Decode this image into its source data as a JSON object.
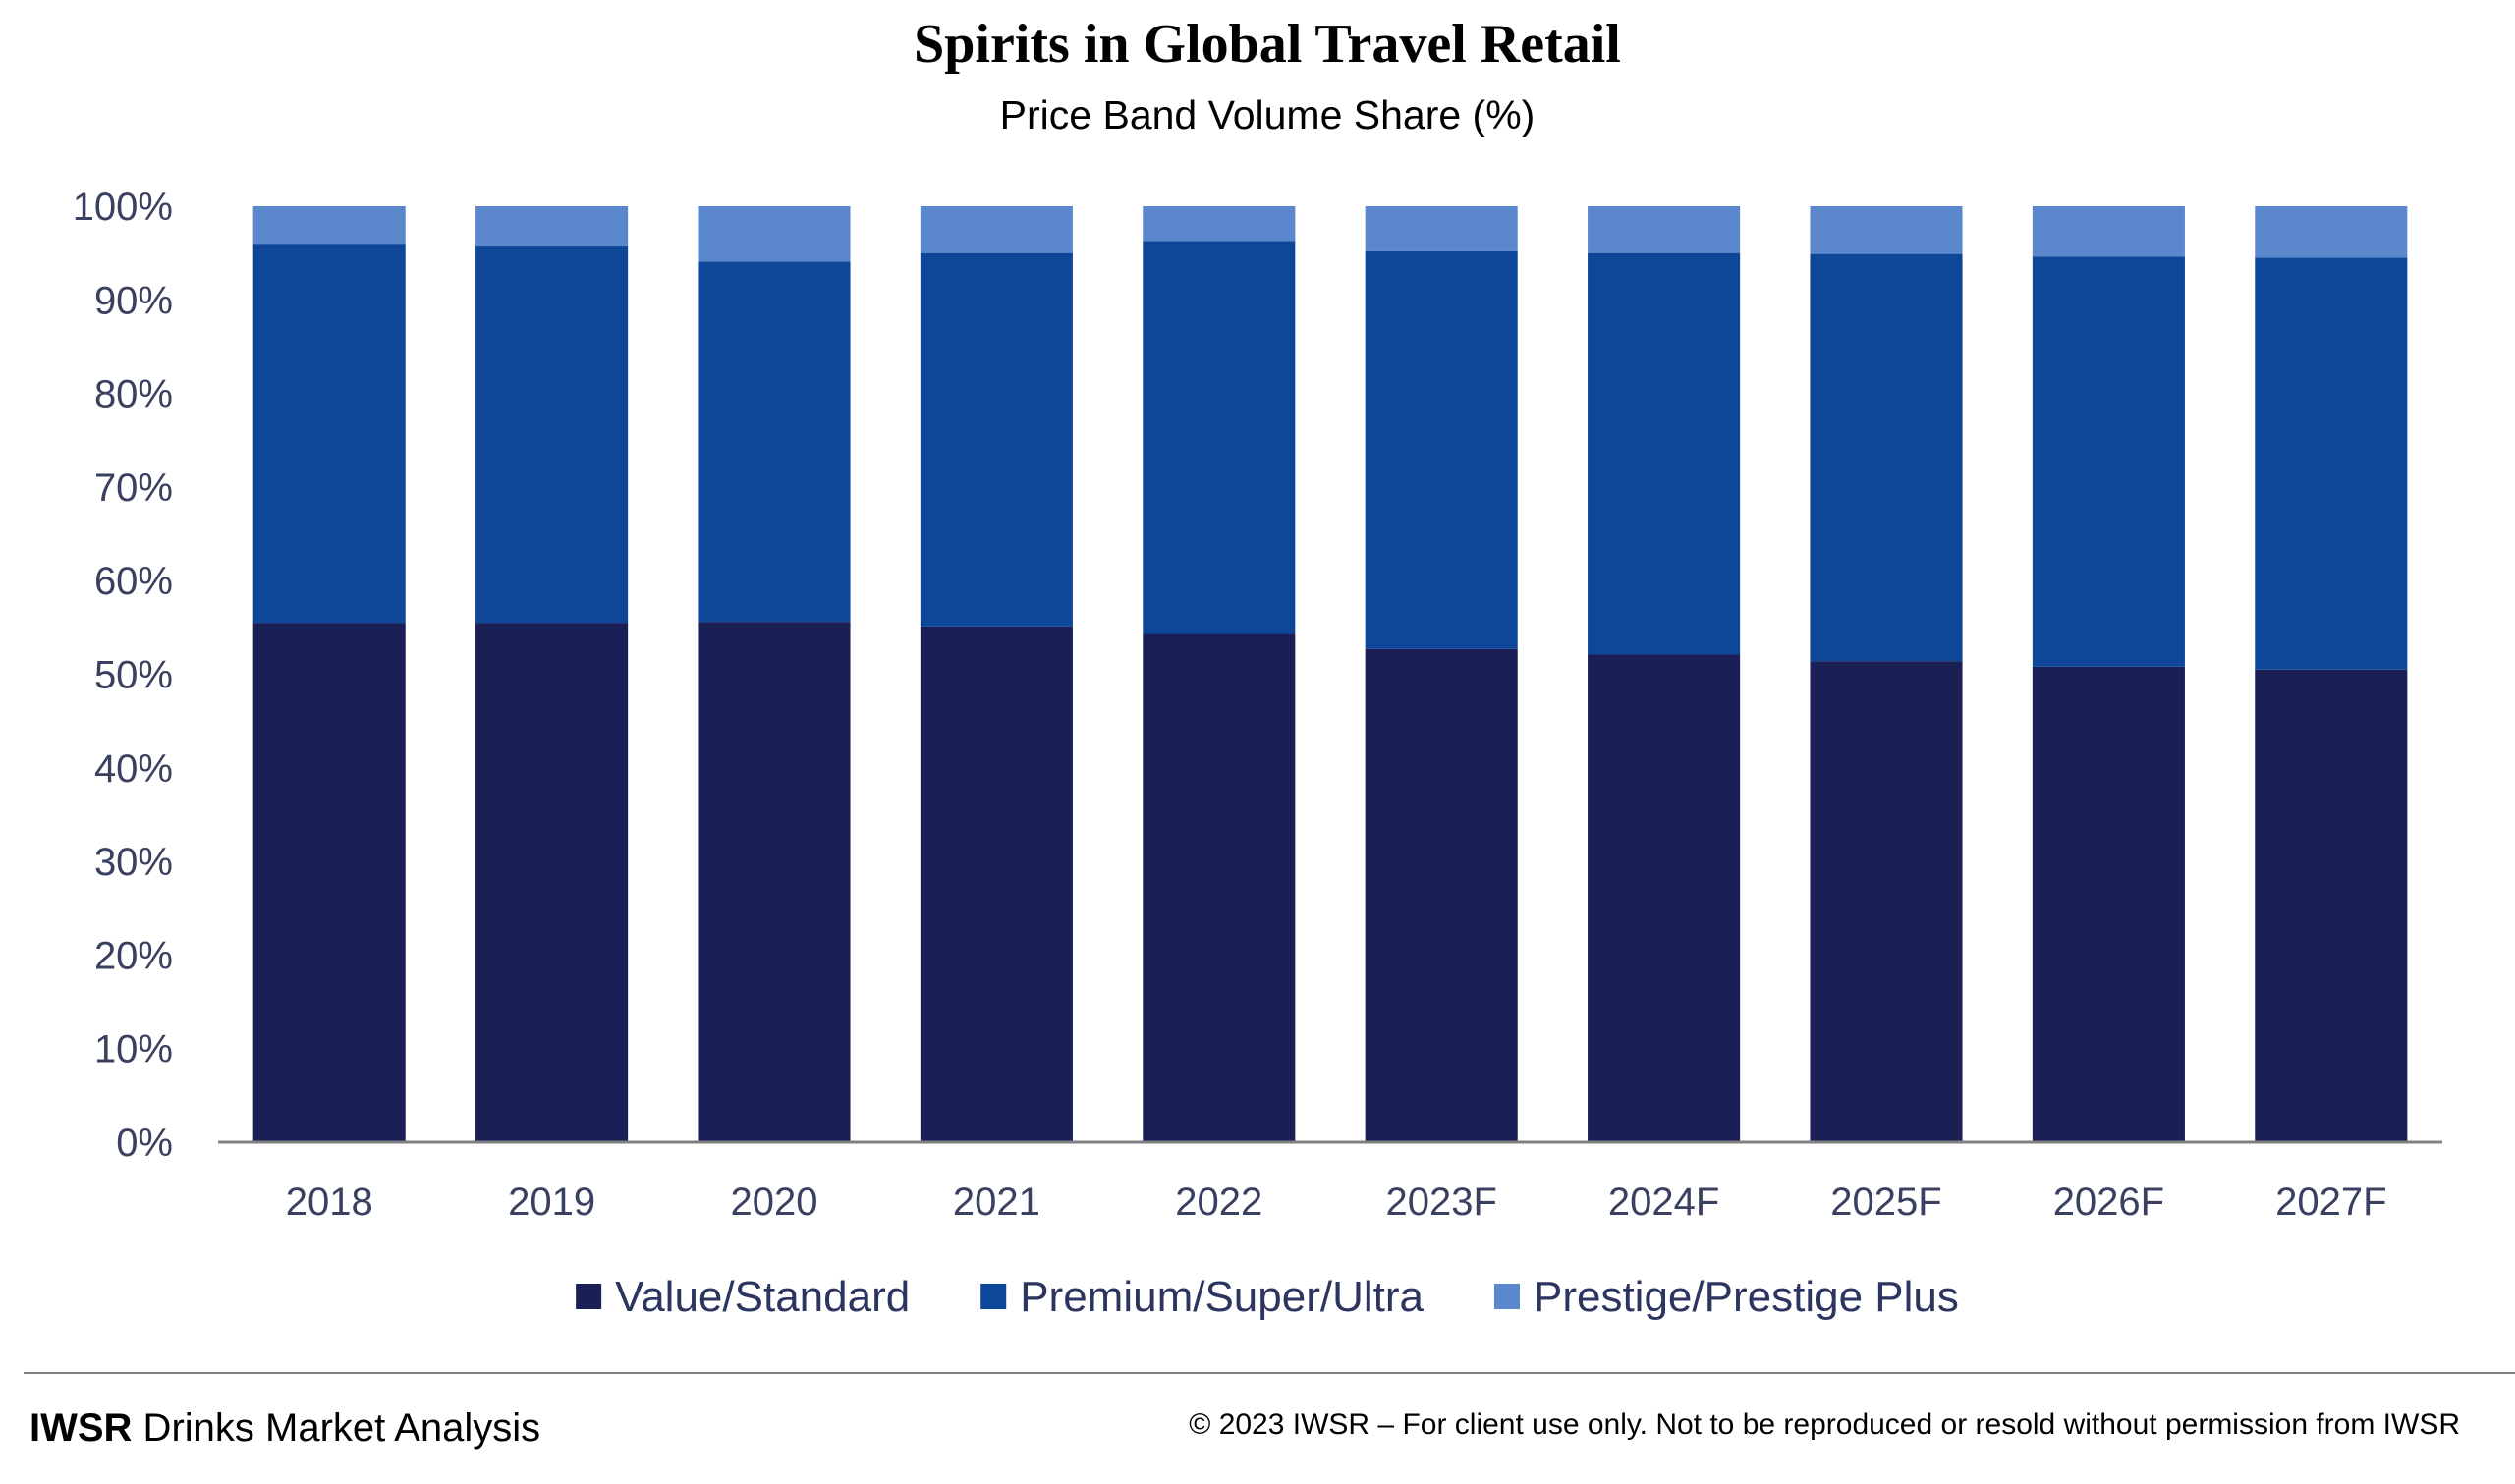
{
  "chart_data": {
    "type": "bar",
    "stacked": true,
    "title": "Spirits in Global Travel Retail",
    "subtitle": "Price Band Volume Share (%)",
    "categories": [
      "2018",
      "2019",
      "2020",
      "2021",
      "2022",
      "2023F",
      "2024F",
      "2025F",
      "2026F",
      "2027F"
    ],
    "series": [
      {
        "name": "Value/Standard",
        "color": "#1a1f55",
        "values": [
          55.5,
          55.5,
          55.6,
          55.1,
          54.3,
          52.7,
          52.1,
          51.4,
          50.8,
          50.5
        ]
      },
      {
        "name": "Premium/Super/Ultra",
        "color": "#0e4699",
        "values": [
          40.5,
          40.3,
          38.5,
          39.9,
          42.0,
          42.5,
          42.9,
          43.5,
          43.8,
          44.0
        ]
      },
      {
        "name": "Prestige/Prestige Plus",
        "color": "#5b87cc",
        "values": [
          4.0,
          4.2,
          5.9,
          5.0,
          3.7,
          4.8,
          5.0,
          5.1,
          5.4,
          5.5
        ]
      }
    ],
    "ylim": [
      0,
      100
    ],
    "yticks": [
      "0%",
      "10%",
      "20%",
      "30%",
      "40%",
      "50%",
      "60%",
      "70%",
      "80%",
      "90%",
      "100%"
    ],
    "xlabel": "",
    "ylabel": "",
    "grid": false,
    "legend": "bottom"
  },
  "footer": {
    "brand_bold": "IWSR",
    "brand_rest": " Drinks Market Analysis",
    "copyright": "© 2023 IWSR – For client use only. Not to be reproduced or resold without permission from IWSR"
  }
}
